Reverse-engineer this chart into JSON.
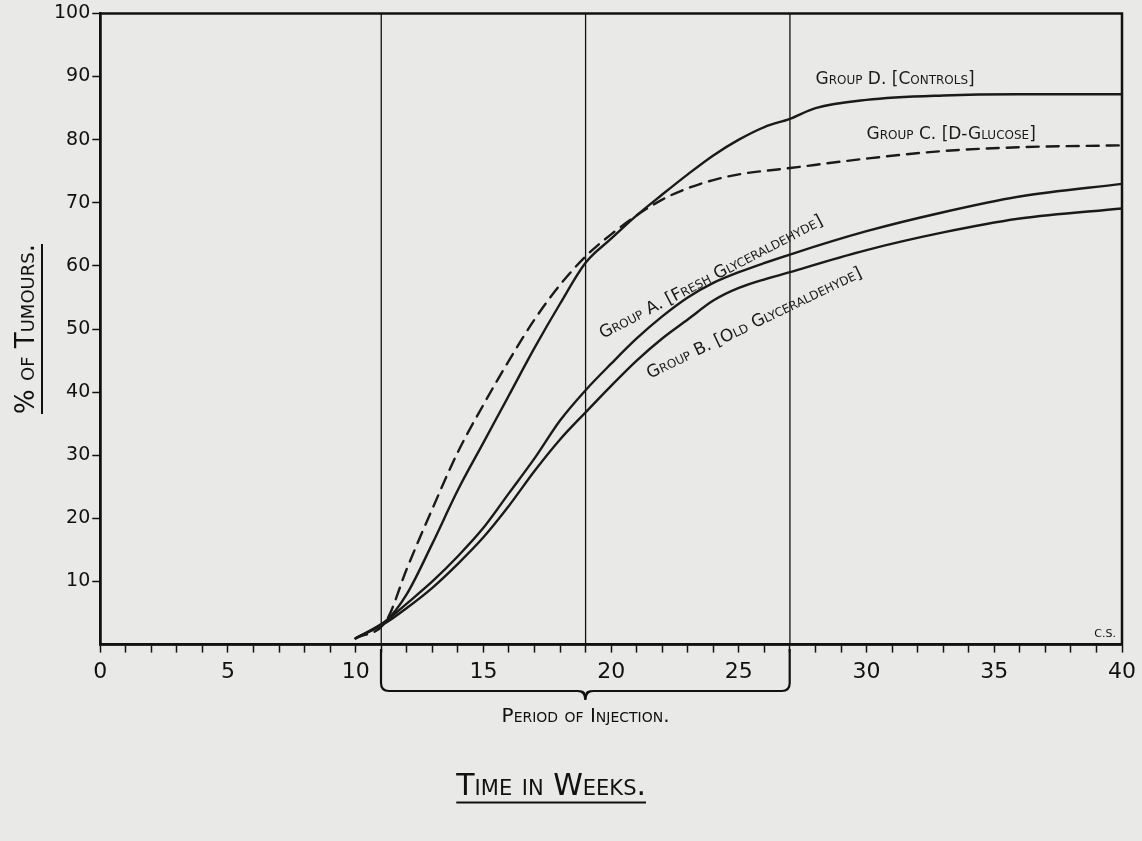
{
  "chart_data": {
    "type": "line",
    "xlabel": "Time in Weeks.",
    "ylabel": "% of Tumours.",
    "xlim": [
      0,
      40
    ],
    "ylim": [
      0,
      100
    ],
    "xticks": [
      0,
      {
        "value": 1,
        "label": null
      },
      {
        "value": 2,
        "label": null
      },
      {
        "value": 3,
        "label": null
      },
      {
        "value": 4,
        "label": null
      },
      5,
      {
        "value": 6,
        "label": null
      },
      {
        "value": 7,
        "label": null
      },
      {
        "value": 8,
        "label": null
      },
      {
        "value": 9,
        "label": null
      },
      10,
      {
        "value": 11,
        "label": null
      },
      {
        "value": 12,
        "label": null
      },
      {
        "value": 13,
        "label": null
      },
      {
        "value": 14,
        "label": null
      },
      15,
      {
        "value": 16,
        "label": null
      },
      {
        "value": 17,
        "label": null
      },
      {
        "value": 18,
        "label": null
      },
      {
        "value": 19,
        "label": null
      },
      20,
      {
        "value": 21,
        "label": null
      },
      {
        "value": 22,
        "label": null
      },
      {
        "value": 23,
        "label": null
      },
      {
        "value": 24,
        "label": null
      },
      25,
      {
        "value": 26,
        "label": null
      },
      {
        "value": 27,
        "label": null
      },
      {
        "value": 28,
        "label": null
      },
      {
        "value": 29,
        "label": null
      },
      30,
      {
        "value": 31,
        "label": null
      },
      {
        "value": 32,
        "label": null
      },
      {
        "value": 33,
        "label": null
      },
      {
        "value": 34,
        "label": null
      },
      35,
      {
        "value": 36,
        "label": null
      },
      {
        "value": 37,
        "label": null
      },
      {
        "value": 38,
        "label": null
      },
      {
        "value": 39,
        "label": null
      },
      40
    ],
    "yticks": [
      10,
      20,
      30,
      40,
      50,
      60,
      70,
      80,
      90,
      100
    ],
    "grid": false,
    "legend": false,
    "marker": "none",
    "series": [
      {
        "name": "Group D. [Controls]",
        "color": "#1a1a1a",
        "line_style": "solid",
        "x": [
          10,
          11.2,
          12,
          13,
          14,
          15,
          16,
          17,
          18,
          19,
          20,
          21,
          22,
          23,
          24,
          25,
          26,
          27,
          28,
          30,
          33,
          36,
          40
        ],
        "values": [
          1,
          3.8,
          8,
          16,
          24.5,
          32,
          39.5,
          47,
          54,
          60.5,
          64.3,
          68,
          71.3,
          74.5,
          77.5,
          80,
          82,
          83.3,
          85,
          86.3,
          87,
          87.2,
          87.2
        ]
      },
      {
        "name": "Group C. [D-Glucose]",
        "color": "#1a1a1a",
        "line_style": "dashed",
        "x": [
          10,
          11.2,
          12,
          13,
          14,
          15,
          16,
          17,
          18,
          19,
          20,
          21,
          22,
          23,
          24,
          25,
          27,
          30,
          33,
          36,
          40
        ],
        "values": [
          1,
          3.8,
          12,
          21.5,
          30.5,
          38,
          45,
          51.5,
          57,
          61.5,
          65,
          68,
          70.5,
          72.3,
          73.6,
          74.5,
          75.5,
          77,
          78.2,
          78.8,
          79.1
        ]
      },
      {
        "name": "Group A. [Fresh Glyceraldehyde]",
        "color": "#1a1a1a",
        "line_style": "solid",
        "x": [
          10,
          11.2,
          12,
          13,
          14,
          15,
          16,
          17,
          18,
          19,
          20,
          21,
          22,
          23,
          24,
          25,
          27,
          30,
          33,
          36,
          40
        ],
        "values": [
          1,
          3.8,
          6.5,
          10,
          14,
          18.5,
          24,
          29.5,
          35.5,
          40.3,
          44.5,
          48.5,
          52,
          55,
          57.3,
          59,
          61.8,
          65.5,
          68.5,
          71,
          73
        ]
      },
      {
        "name": "Group B. [Old Glyceraldehyde]",
        "color": "#1a1a1a",
        "line_style": "solid",
        "x": [
          10,
          11.2,
          12,
          13,
          14,
          15,
          16,
          17,
          18,
          19,
          20,
          21,
          22,
          23,
          24,
          25,
          27,
          30,
          33,
          36,
          40
        ],
        "values": [
          1,
          3.5,
          5.8,
          9,
          12.8,
          17,
          22,
          27.5,
          32.5,
          36.8,
          41,
          45,
          48.5,
          51.5,
          54.5,
          56.5,
          59,
          62.5,
          65.3,
          67.5,
          69.1
        ]
      }
    ],
    "ref_lines": [
      {
        "axis": "x",
        "value": 11
      },
      {
        "axis": "x",
        "value": 19
      },
      {
        "axis": "x",
        "value": 27
      }
    ],
    "annotations": [
      "Period of Injection.",
      "C.S."
    ]
  }
}
